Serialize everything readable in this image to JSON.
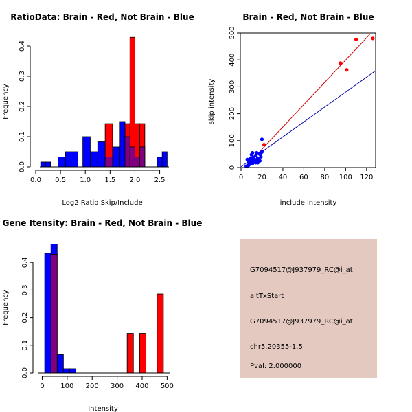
{
  "chart_data": [
    {
      "id": "ratio",
      "type": "histogram",
      "title": "RatioData: Brain - Red, Not Brain - Blue",
      "xlabel": "Log2 Ratio Skip/Include",
      "ylabel": "Frequency",
      "xlim": [
        0,
        2.7
      ],
      "ylim": [
        0,
        0.45
      ],
      "xticks": [
        0.0,
        0.5,
        1.0,
        1.5,
        2.0,
        2.5
      ],
      "xtick_labels": [
        "0.0",
        "0.5",
        "1.0",
        "1.5",
        "2.0",
        "2.5"
      ],
      "yticks": [
        0.0,
        0.1,
        0.2,
        0.3,
        0.4
      ],
      "ytick_labels": [
        "0.0",
        "0.1",
        "0.2",
        "0.3",
        "0.4"
      ],
      "series": [
        {
          "name": "Not Brain",
          "color": "#0000ff",
          "bins": [
            [
              0.1,
              0.2,
              0.016
            ],
            [
              0.2,
              0.3,
              0.016
            ],
            [
              0.45,
              0.6,
              0.033
            ],
            [
              0.6,
              0.85,
              0.05
            ],
            [
              0.95,
              1.1,
              0.1
            ],
            [
              1.1,
              1.25,
              0.05
            ],
            [
              1.25,
              1.4,
              0.083
            ],
            [
              1.4,
              1.55,
              0.033
            ],
            [
              1.55,
              1.7,
              0.066
            ],
            [
              1.7,
              1.8,
              0.15
            ],
            [
              1.8,
              1.9,
              0.1
            ],
            [
              1.9,
              2.0,
              0.066
            ],
            [
              2.0,
              2.1,
              0.033
            ],
            [
              2.1,
              2.2,
              0.066
            ],
            [
              2.45,
              2.55,
              0.033
            ],
            [
              2.55,
              2.65,
              0.05
            ]
          ]
        },
        {
          "name": "Brain",
          "color": "#ff0000",
          "bins": [
            [
              1.4,
              1.55,
              0.143
            ],
            [
              1.8,
              1.9,
              0.143
            ],
            [
              1.9,
              2.0,
              0.429
            ],
            [
              2.0,
              2.1,
              0.143
            ],
            [
              2.1,
              2.2,
              0.143
            ]
          ]
        }
      ]
    },
    {
      "id": "scatter",
      "type": "scatter",
      "title": "Brain - Red, Not Brain - Blue",
      "xlabel": "include intensity",
      "ylabel": "skip intensity",
      "xlim": [
        0,
        128
      ],
      "ylim": [
        0,
        500
      ],
      "xticks": [
        0,
        20,
        40,
        60,
        80,
        100,
        120
      ],
      "xtick_labels": [
        "0",
        "20",
        "40",
        "60",
        "80",
        "100",
        "120"
      ],
      "yticks": [
        0,
        100,
        200,
        300,
        400,
        500
      ],
      "ytick_labels": [
        "0",
        "100",
        "200",
        "300",
        "400",
        "500"
      ],
      "series": [
        {
          "name": "Not Brain",
          "color": "#0000ff",
          "points": [
            [
              5,
              5
            ],
            [
              6,
              30
            ],
            [
              7,
              20
            ],
            [
              8,
              12
            ],
            [
              8,
              30
            ],
            [
              9,
              35
            ],
            [
              10,
              25
            ],
            [
              10,
              48
            ],
            [
              11,
              15
            ],
            [
              11,
              55
            ],
            [
              12,
              20
            ],
            [
              12,
              38
            ],
            [
              13,
              30
            ],
            [
              14,
              18
            ],
            [
              14,
              45
            ],
            [
              15,
              28
            ],
            [
              15,
              55
            ],
            [
              16,
              18
            ],
            [
              16,
              35
            ],
            [
              17,
              30
            ],
            [
              17,
              22
            ],
            [
              18,
              50
            ],
            [
              18,
              25
            ],
            [
              20,
              105
            ],
            [
              20,
              58
            ],
            [
              19,
              40
            ],
            [
              13,
              22
            ],
            [
              9,
              15
            ],
            [
              7,
              8
            ]
          ],
          "fit_line": [
            [
              0,
              3
            ],
            [
              128,
              358
            ]
          ]
        },
        {
          "name": "Brain",
          "color": "#ff0000",
          "points": [
            [
              22,
              85
            ],
            [
              95,
              388
            ],
            [
              101,
              363
            ],
            [
              110,
              476
            ],
            [
              126,
              480
            ]
          ],
          "fit_line": [
            [
              0,
              -15
            ],
            [
              125,
              503
            ]
          ]
        }
      ]
    },
    {
      "id": "gene",
      "type": "histogram",
      "title": "Gene Itensity: Brain - Red, Not Brain - Blue",
      "xlabel": "Intensity",
      "ylabel": "Frequency",
      "xlim": [
        -15,
        510
      ],
      "ylim": [
        0,
        0.48
      ],
      "xticks": [
        0,
        100,
        200,
        300,
        400,
        500
      ],
      "xtick_labels": [
        "0",
        "100",
        "200",
        "300",
        "400",
        "500"
      ],
      "yticks": [
        0.0,
        0.1,
        0.2,
        0.3,
        0.4
      ],
      "ytick_labels": [
        "0.0",
        "0.1",
        "0.2",
        "0.3",
        "0.4"
      ],
      "series": [
        {
          "name": "Not Brain",
          "color": "#0000ff",
          "bins": [
            [
              10,
              35,
              0.433
            ],
            [
              35,
              60,
              0.466
            ],
            [
              60,
              85,
              0.066
            ],
            [
              85,
              110,
              0.015
            ],
            [
              110,
              135,
              0.015
            ]
          ]
        },
        {
          "name": "Brain",
          "color": "#ff0000",
          "bins": [
            [
              35,
              60,
              0.429
            ],
            [
              340,
              365,
              0.143
            ],
            [
              390,
              415,
              0.143
            ],
            [
              460,
              485,
              0.286
            ]
          ]
        }
      ]
    }
  ],
  "info_panel": {
    "lines": [
      "G7094517@J937979_RC@i_at",
      "altTxStart",
      "G7094517@J937979_RC@i_at",
      "chr5.20355-1.5"
    ],
    "pval": "Pval: 2.000000",
    "background": "#e4c9c1",
    "pval_color": "#cc0000"
  }
}
